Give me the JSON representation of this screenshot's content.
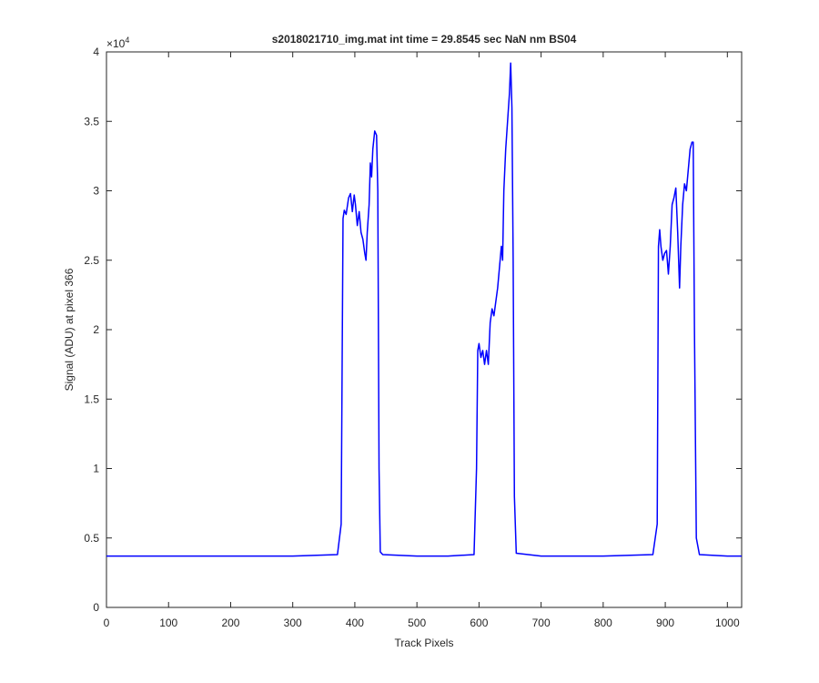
{
  "chart_data": {
    "type": "line",
    "title": "s2018021710_img.mat int time = 29.8545 sec  NaN nm BS04",
    "x_label": "Track Pixels",
    "y_label": "Signal (ADU) at pixel 366",
    "y_multiplier_base": "×10",
    "y_multiplier_exp": "4",
    "xlim": [
      0,
      1023
    ],
    "xticks": [
      0,
      100,
      200,
      300,
      400,
      500,
      600,
      700,
      800,
      900,
      1000
    ],
    "ylim": [
      0,
      4
    ],
    "yticks": [
      0,
      0.5,
      1,
      1.5,
      2,
      2.5,
      3,
      3.5,
      4
    ],
    "series": [
      {
        "color": "#0000ff",
        "x": [
          0,
          100,
          200,
          300,
          372,
          378,
          381,
          383,
          386,
          390,
          393,
          396,
          399,
          401,
          404,
          407,
          410,
          413,
          416,
          418,
          420,
          423,
          425,
          427,
          429,
          432,
          435,
          437,
          439,
          441,
          445,
          500,
          550,
          592,
          596,
          598,
          600,
          603,
          606,
          609,
          612,
          615,
          618,
          621,
          624,
          627,
          630,
          633,
          636,
          638,
          640,
          643,
          646,
          649,
          651,
          653,
          655,
          657,
          660,
          700,
          800,
          880,
          887,
          889,
          891,
          893,
          896,
          899,
          902,
          905,
          908,
          911,
          914,
          917,
          920,
          923,
          925,
          928,
          931,
          934,
          937,
          940,
          943,
          945,
          947,
          950,
          955,
          1000,
          1023
        ],
        "values": [
          0.37,
          0.37,
          0.37,
          0.37,
          0.38,
          0.6,
          2.8,
          2.86,
          2.83,
          2.95,
          2.98,
          2.85,
          2.97,
          2.9,
          2.75,
          2.85,
          2.7,
          2.65,
          2.55,
          2.5,
          2.7,
          2.9,
          3.2,
          3.1,
          3.3,
          3.43,
          3.4,
          3.0,
          1.0,
          0.4,
          0.38,
          0.37,
          0.37,
          0.38,
          1.0,
          1.85,
          1.9,
          1.8,
          1.85,
          1.75,
          1.85,
          1.75,
          2.05,
          2.15,
          2.1,
          2.2,
          2.3,
          2.45,
          2.6,
          2.5,
          3.0,
          3.3,
          3.5,
          3.7,
          3.92,
          3.6,
          2.5,
          0.8,
          0.39,
          0.37,
          0.37,
          0.38,
          0.6,
          2.6,
          2.72,
          2.6,
          2.5,
          2.55,
          2.57,
          2.4,
          2.6,
          2.9,
          2.95,
          3.02,
          2.7,
          2.3,
          2.6,
          2.9,
          3.05,
          3.0,
          3.15,
          3.3,
          3.35,
          3.35,
          2.0,
          0.5,
          0.38,
          0.37,
          0.37
        ]
      }
    ]
  }
}
